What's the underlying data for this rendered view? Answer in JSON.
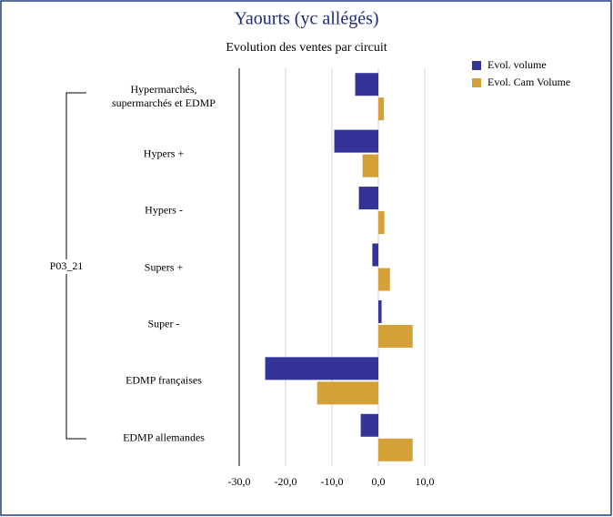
{
  "chart_data": {
    "type": "hbar",
    "title": "Yaourts (yc allégés)",
    "subtitle": "Evolution des ventes par circuit",
    "group_label": "P03_21",
    "categories": [
      "Hypermarchés, supermarchés et EDMP",
      "Hypers +",
      "Hypers -",
      "Supers +",
      "Super -",
      "EDMP françaises",
      "EDMP allemandes"
    ],
    "series": [
      {
        "name": "Evol. volume",
        "color": "#333399",
        "values": [
          -5.0,
          -9.5,
          -4.2,
          -1.3,
          0.7,
          -24.4,
          -3.8
        ]
      },
      {
        "name": "Evol. Cam Volume",
        "color": "#d4a037",
        "values": [
          1.2,
          -3.4,
          1.3,
          2.5,
          7.4,
          -13.2,
          7.4
        ]
      }
    ],
    "xlim": [
      -30,
      10
    ],
    "xticks": [
      {
        "value": -30,
        "label": "-30,0"
      },
      {
        "value": -20,
        "label": "-20,0"
      },
      {
        "value": -10,
        "label": "-10,0"
      },
      {
        "value": 0,
        "label": "0,0"
      },
      {
        "value": 10,
        "label": "10,0"
      }
    ],
    "grid": true,
    "legend": "top-right"
  }
}
